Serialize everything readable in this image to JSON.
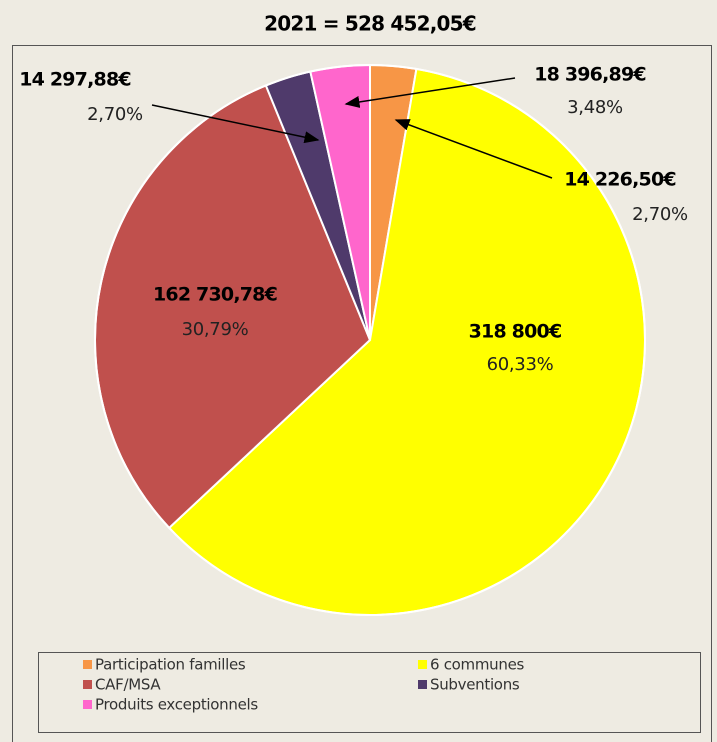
{
  "chart_data": {
    "type": "pie",
    "title": "2021 = 528 452,05€",
    "categories": [
      "Participation familles",
      "6 communes",
      "CAF/MSA",
      "Subventions",
      "Produits exceptionnels"
    ],
    "values": [
      2.7,
      60.33,
      30.79,
      2.7,
      3.48
    ],
    "value_labels": [
      "2,70%",
      "60,33%",
      "30,79%",
      "2,70%",
      "3,48%"
    ],
    "amounts": [
      14226.5,
      318800,
      162730.78,
      14297.88,
      18396.89
    ],
    "amount_labels": [
      "14 226,50€",
      "318 800€",
      "162 730,78€",
      "14 297,88€",
      "18 396,89€"
    ],
    "colors": [
      "#f79646",
      "#ffff00",
      "#c0504d",
      "#4f3a6b",
      "#ff66cc"
    ],
    "legend": "bottom"
  }
}
